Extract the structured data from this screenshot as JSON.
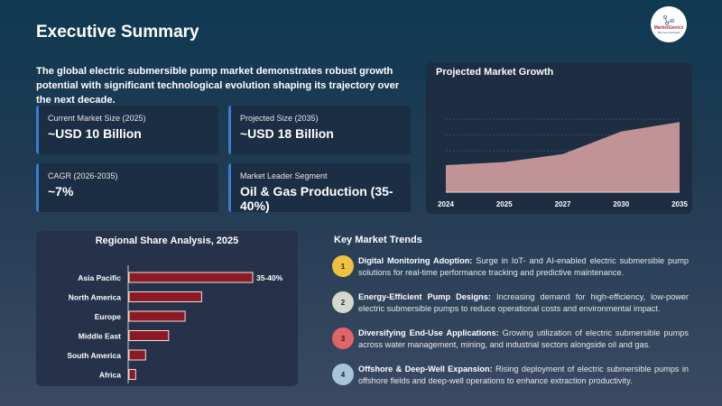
{
  "header": {
    "title": "Executive Summary",
    "logo_text": "MarketGenics",
    "logo_tagline": "Where to Succeed"
  },
  "intro": "The global electric submersible pump market demonstrates robust growth potential with significant technological evolution shaping its trajectory over the next decade.",
  "cards": [
    {
      "label": "Current Market Size (2025)",
      "value": "~USD 10 Billion"
    },
    {
      "label": "Projected Size (2035)",
      "value": "~USD 18 Billion"
    },
    {
      "label": "CAGR (2026-2035)",
      "value": "~7%"
    },
    {
      "label": "Market Leader Segment",
      "value": "Oil & Gas Production (35-40%)"
    }
  ],
  "accent_color": "#3b7bd0",
  "chart_data": [
    {
      "type": "area",
      "title": "Projected Market Growth",
      "categories": [
        "2024",
        "2025",
        "2027",
        "2030",
        "2035"
      ],
      "values": [
        9.4,
        10,
        11.6,
        16.1,
        18
      ],
      "unit": "USD Billion",
      "ylim": [
        4,
        22
      ],
      "grid": true,
      "color": "#c09496"
    },
    {
      "type": "bar",
      "orientation": "horizontal",
      "title": "Regional Share Analysis, 2025",
      "categories": [
        "Asia Pacific",
        "North America",
        "Europe",
        "Middle East",
        "South America",
        "Africa"
      ],
      "values": [
        37.5,
        22,
        17,
        12,
        5,
        2
      ],
      "data_labels": [
        "35-40%",
        "",
        "",
        "",
        "",
        ""
      ],
      "color": "#8b1a24"
    }
  ],
  "trends": {
    "title": "Key Market Trends",
    "items": [
      {
        "num": "1",
        "color": "#f0c040",
        "title": "Digital Monitoring Adoption:",
        "text": " Surge in IoT- and AI-enabled electric submersible pump solutions for real-time performance tracking and predictive maintenance."
      },
      {
        "num": "2",
        "color": "#d4d8cc",
        "title": "Energy-Efficient Pump Designs:",
        "text": " Increasing demand for high-efficiency, low-power electric submersible pumps to reduce operational costs and environmental impact."
      },
      {
        "num": "3",
        "color": "#e06468",
        "title": "Diversifying End-Use Applications:",
        "text": " Growing utilization of electric submersible pumps across water management, mining, and industrial sectors alongside oil and gas."
      },
      {
        "num": "4",
        "color": "#a8c4d8",
        "title": "Offshore & Deep-Well Expansion:",
        "text": " Rising deployment of electric submersible pumps in offshore fields and deep-well operations to enhance extraction productivity."
      }
    ]
  }
}
